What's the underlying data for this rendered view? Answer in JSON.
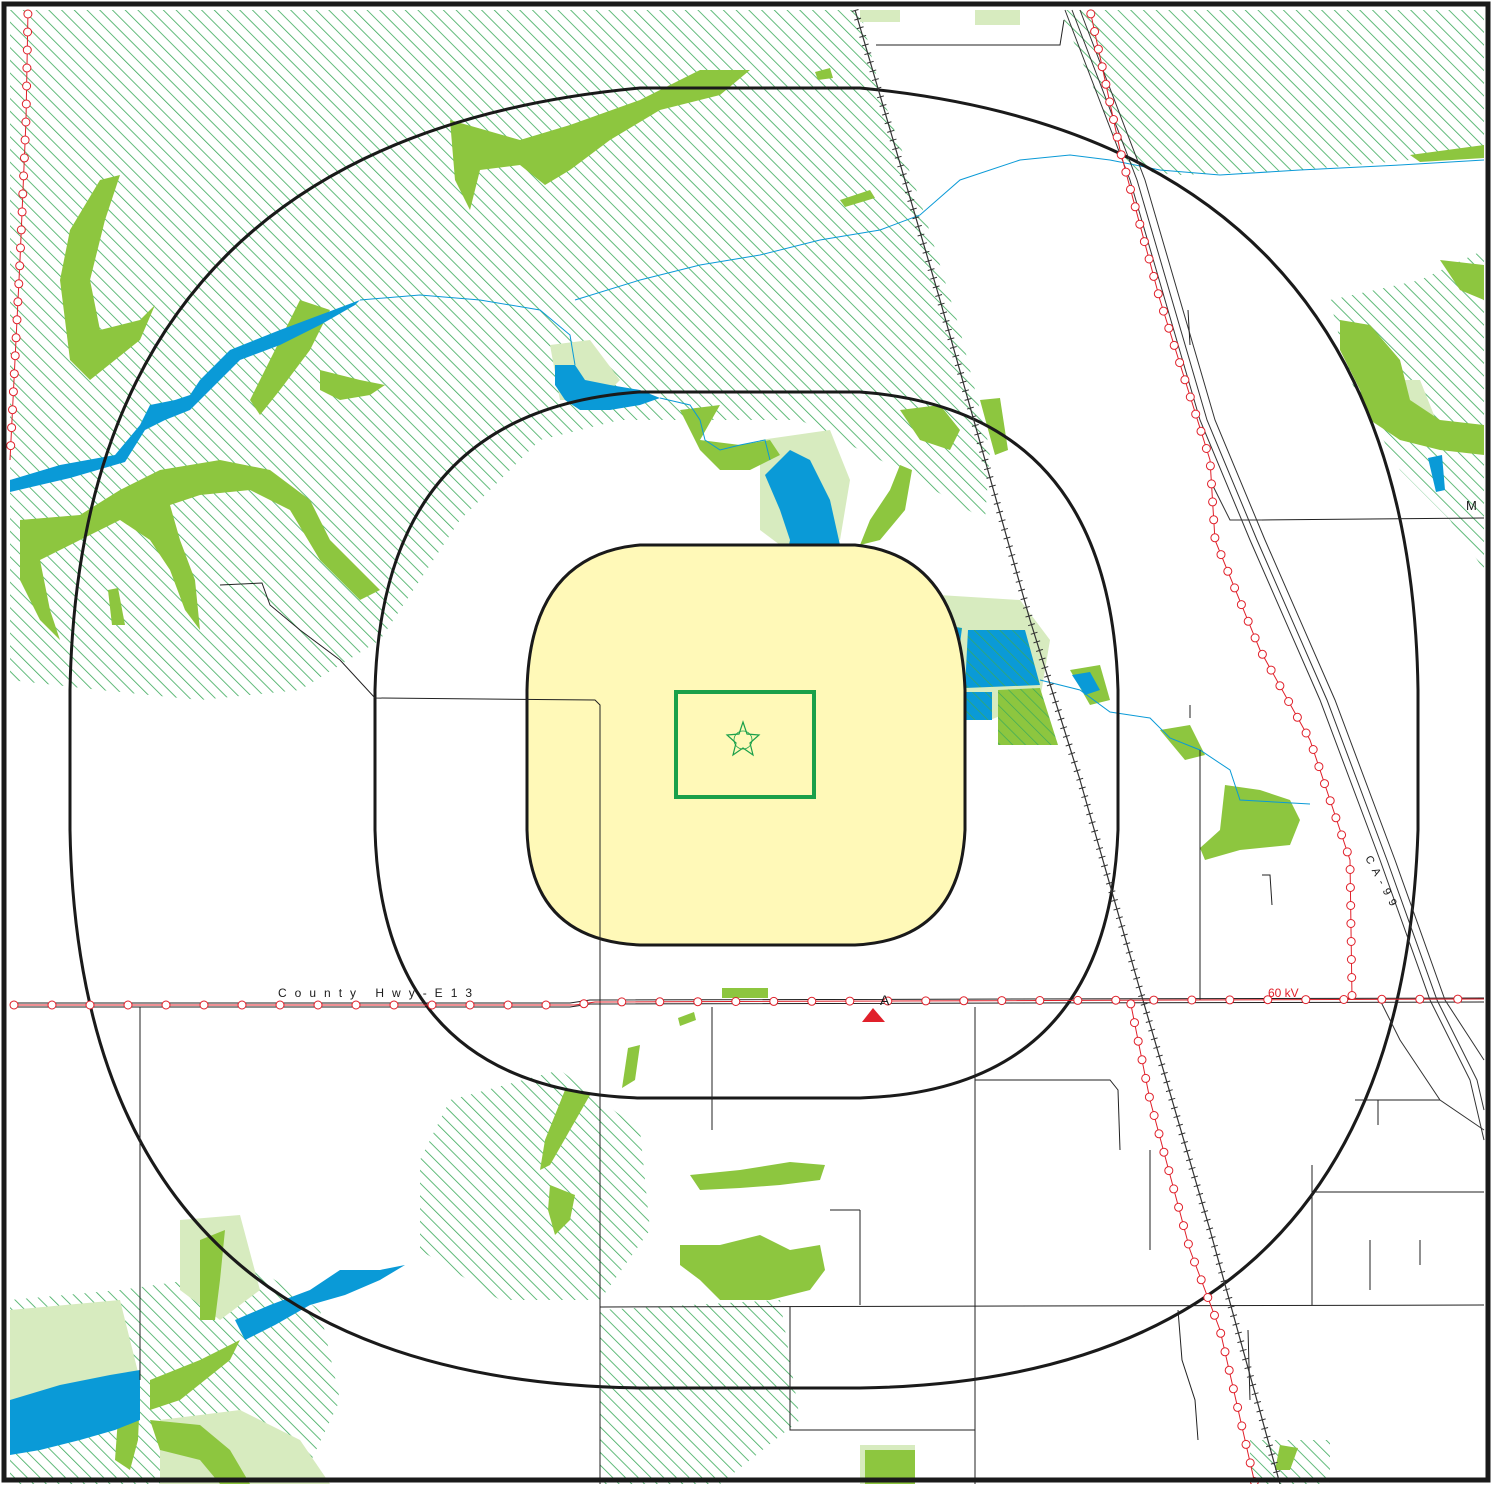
{
  "map": {
    "road_labels": {
      "county_highway": "County Hwy-E13",
      "state_route": "CA-99",
      "edge_marker": "M"
    },
    "powerline_label": "60 kV",
    "marker_label": "A"
  },
  "colors": {
    "frame": "#1a1a1a",
    "buffer_ring": "#1a1a1a",
    "site_zone_fill": "#fff9b8",
    "site_box_stroke": "#1aa04a",
    "wetland_hatch": "#3aaa5a",
    "vegetation": "#8dc63f",
    "vegetation_light": "#d7ebbf",
    "water": "#0a9ad7",
    "powerline": "#e0202a",
    "railroad": "#333333",
    "road": "#222222",
    "marker": "#e0202a"
  },
  "icons": {
    "site_symbol": "star-icon",
    "marker_symbol": "triangle-marker-icon"
  }
}
